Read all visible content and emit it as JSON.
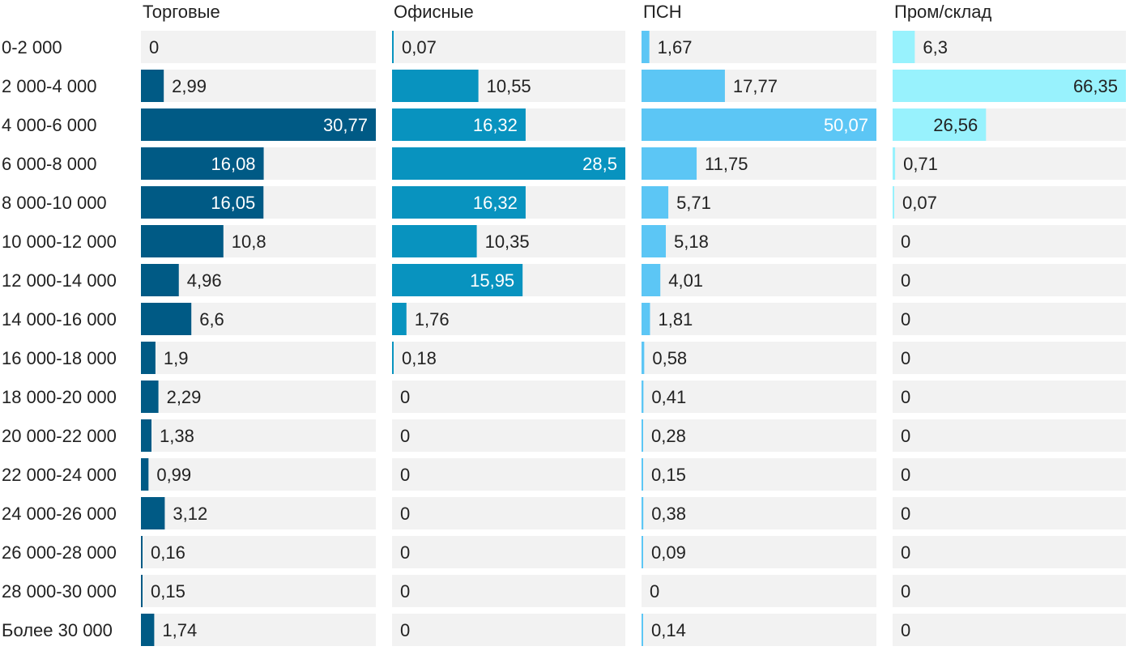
{
  "chart_data": {
    "type": "bar",
    "orientation": "horizontal",
    "layout": "small-multiples",
    "categories": [
      "0-2 000",
      "2 000-4 000",
      "4 000-6 000",
      "6 000-8 000",
      "8 000-10 000",
      "10 000-12 000",
      "12 000-14 000",
      "14 000-16 000",
      "16 000-18 000",
      "18 000-20 000",
      "20 000-22 000",
      "22 000-24 000",
      "24 000-26 000",
      "26 000-28 000",
      "28 000-30 000",
      "Более 30 000"
    ],
    "series": [
      {
        "name": "Торговые",
        "color": "#005a85",
        "values": [
          0,
          2.99,
          30.77,
          16.08,
          16.05,
          10.8,
          4.96,
          6.6,
          1.9,
          2.29,
          1.38,
          0.99,
          3.12,
          0.16,
          0.15,
          1.74
        ],
        "labels": [
          "0",
          "2,99",
          "30,77",
          "16,08",
          "16,05",
          "10,8",
          "4,96",
          "6,6",
          "1,9",
          "2,29",
          "1,38",
          "0,99",
          "3,12",
          "0,16",
          "0,15",
          "1,74"
        ]
      },
      {
        "name": "Офисные",
        "color": "#0893bf",
        "values": [
          0.07,
          10.55,
          16.32,
          28.5,
          16.32,
          10.35,
          15.95,
          1.76,
          0.18,
          0,
          0,
          0,
          0,
          0,
          0,
          0
        ],
        "labels": [
          "0,07",
          "10,55",
          "16,32",
          "28,5",
          "16,32",
          "10,35",
          "15,95",
          "1,76",
          "0,18",
          "0",
          "0",
          "0",
          "0",
          "0",
          "0",
          "0"
        ]
      },
      {
        "name": "ПСН",
        "color": "#5cc6f5",
        "values": [
          1.67,
          17.77,
          50.07,
          11.75,
          5.71,
          5.18,
          4.01,
          1.81,
          0.58,
          0.41,
          0.28,
          0.15,
          0.38,
          0.09,
          0,
          0.14
        ],
        "labels": [
          "1,67",
          "17,77",
          "50,07",
          "11,75",
          "5,71",
          "5,18",
          "4,01",
          "1,81",
          "0,58",
          "0,41",
          "0,28",
          "0,15",
          "0,38",
          "0,09",
          "0",
          "0,14"
        ]
      },
      {
        "name": "Пром/склад",
        "color": "#98f2fd",
        "values": [
          6.3,
          66.35,
          26.56,
          0.71,
          0.07,
          0,
          0,
          0,
          0,
          0,
          0,
          0,
          0,
          0,
          0,
          0
        ],
        "labels": [
          "6,3",
          "66,35",
          "26,56",
          "0,71",
          "0,07",
          "0",
          "0",
          "0",
          "0",
          "0",
          "0",
          "0",
          "0",
          "0",
          "0",
          "0"
        ]
      }
    ],
    "colors": {
      "track": "#f2f2f2",
      "text_dark": "#222222",
      "text_light": "#ffffff"
    },
    "grid": false,
    "legend": "none"
  }
}
